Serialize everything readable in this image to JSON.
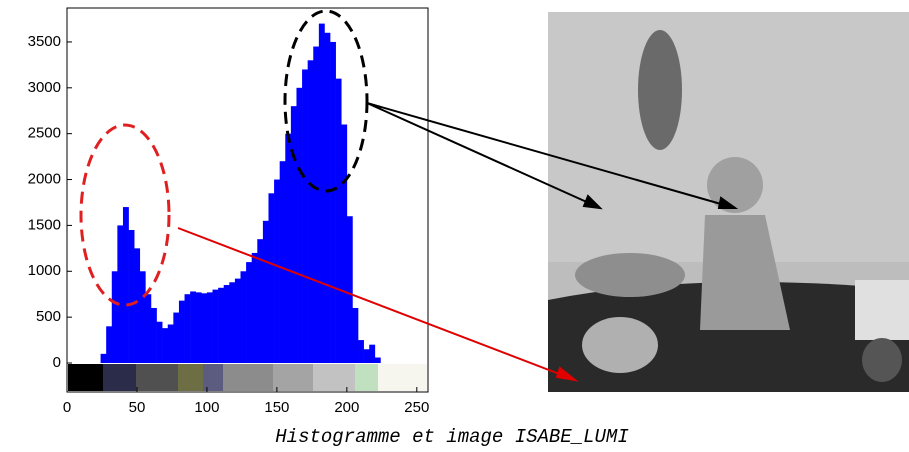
{
  "chart_data": {
    "type": "histogram",
    "bins": [
      24,
      28,
      32,
      36,
      40,
      44,
      48,
      52,
      56,
      60,
      64,
      68,
      72,
      76,
      80,
      84,
      88,
      92,
      96,
      100,
      104,
      108,
      112,
      116,
      120,
      124,
      128,
      132,
      136,
      140,
      144,
      148,
      152,
      156,
      160,
      164,
      168,
      172,
      176,
      180,
      184,
      188,
      192,
      196,
      200,
      204,
      208,
      212,
      216,
      220,
      224
    ],
    "values": [
      100,
      400,
      1000,
      1500,
      1700,
      1450,
      1250,
      1000,
      750,
      600,
      450,
      380,
      420,
      550,
      680,
      750,
      780,
      770,
      760,
      770,
      800,
      820,
      850,
      880,
      920,
      1000,
      1100,
      1200,
      1350,
      1550,
      1850,
      2000,
      2200,
      2500,
      2800,
      3000,
      3200,
      3300,
      3450,
      3700,
      3600,
      3500,
      3100,
      2600,
      1600,
      600,
      250,
      150,
      200,
      60
    ],
    "color": "#0000ff",
    "xlim": [
      0,
      258
    ],
    "ylim": [
      -316,
      3870
    ],
    "xticks": [
      0,
      50,
      100,
      150,
      200,
      250
    ],
    "yticks": [
      0,
      500,
      1000,
      1500,
      2000,
      2500,
      3000,
      3500
    ],
    "caption": "Histogramme et image ISABE_LUMI"
  }
}
